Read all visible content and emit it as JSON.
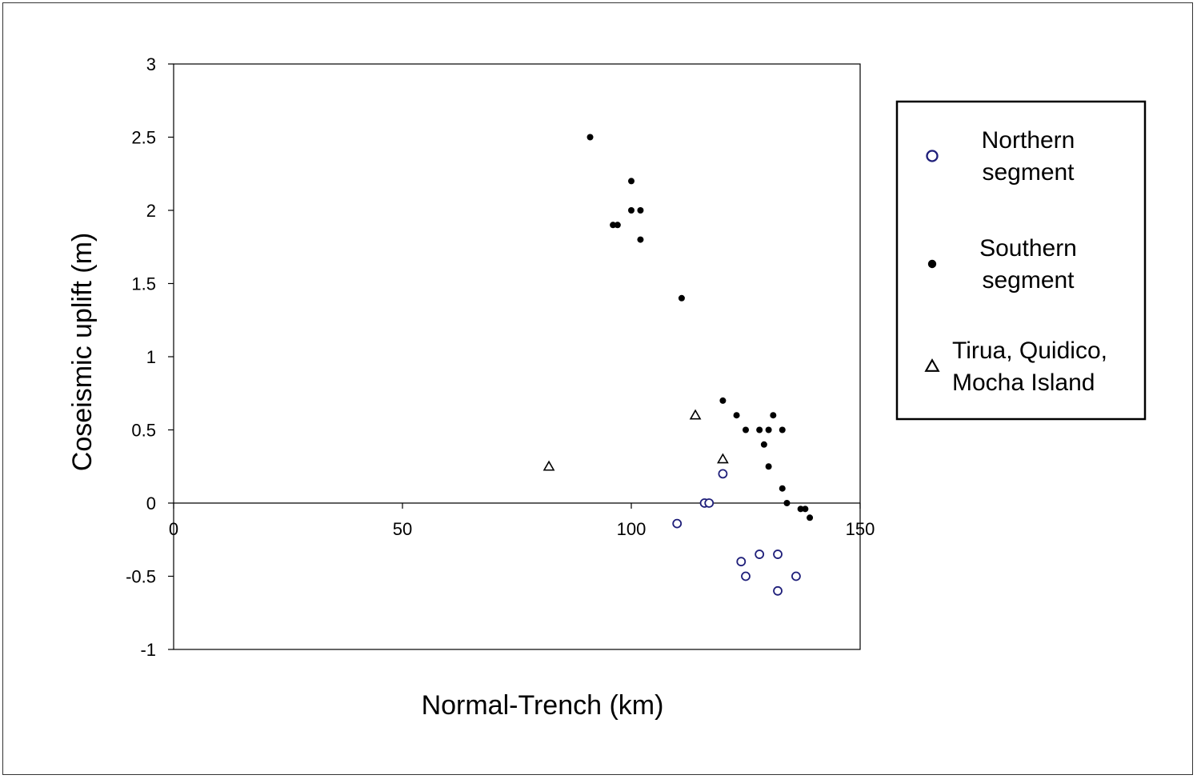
{
  "chart_data": {
    "type": "scatter",
    "title": "",
    "xlabel": "Normal-Trench (km)",
    "ylabel": "Coseismic uplift (m)",
    "xlim": [
      0,
      150
    ],
    "ylim": [
      -1,
      3
    ],
    "x_ticks": [
      0,
      50,
      100,
      150
    ],
    "x_tick_labels": [
      "0",
      "50",
      "100",
      "150"
    ],
    "y_ticks": [
      3,
      2.5,
      2,
      1.5,
      1,
      0.5,
      0,
      -0.5,
      -1
    ],
    "y_tick_labels": [
      "3",
      "2.5",
      "2",
      "1.5",
      "1",
      "0.5",
      "0",
      "-0.5",
      "-1"
    ],
    "grid": false,
    "legend_position": "right",
    "series": [
      {
        "name": "Northern segment",
        "marker": "open-circle",
        "color": "#1f1f7a",
        "points": [
          [
            110,
            -0.14
          ],
          [
            116,
            0
          ],
          [
            117,
            0
          ],
          [
            120,
            0.2
          ],
          [
            124,
            -0.4
          ],
          [
            125,
            -0.5
          ],
          [
            128,
            -0.35
          ],
          [
            132,
            -0.35
          ],
          [
            132,
            -0.6
          ],
          [
            136,
            -0.5
          ]
        ]
      },
      {
        "name": "Southern segment",
        "marker": "filled-circle",
        "color": "#000000",
        "points": [
          [
            91,
            2.5
          ],
          [
            96,
            1.9
          ],
          [
            97,
            1.9
          ],
          [
            100,
            2.2
          ],
          [
            100,
            2.0
          ],
          [
            102,
            2.0
          ],
          [
            102,
            1.8
          ],
          [
            111,
            1.4
          ],
          [
            120,
            0.7
          ],
          [
            123,
            0.6
          ],
          [
            125,
            0.5
          ],
          [
            128,
            0.5
          ],
          [
            129,
            0.4
          ],
          [
            130,
            0.5
          ],
          [
            130,
            0.25
          ],
          [
            131,
            0.6
          ],
          [
            133,
            0.5
          ],
          [
            133,
            0.1
          ],
          [
            134,
            0
          ],
          [
            137,
            -0.04
          ],
          [
            138,
            -0.04
          ],
          [
            139,
            -0.1
          ]
        ]
      },
      {
        "name": "Tirua, Quidico, Mocha Island",
        "marker": "open-triangle",
        "color": "#000000",
        "points": [
          [
            82,
            0.25
          ],
          [
            114,
            0.6
          ],
          [
            120,
            0.3
          ]
        ]
      }
    ],
    "legend": {
      "entries": [
        {
          "lines": [
            "Northern",
            "segment"
          ],
          "marker": "open-circle",
          "color": "#1f1f7a"
        },
        {
          "lines": [
            "Southern",
            "segment"
          ],
          "marker": "filled-circle",
          "color": "#000000"
        },
        {
          "lines": [
            "Tirua, Quidico,",
            "Mocha Island"
          ],
          "marker": "open-triangle",
          "color": "#000000"
        }
      ]
    }
  }
}
